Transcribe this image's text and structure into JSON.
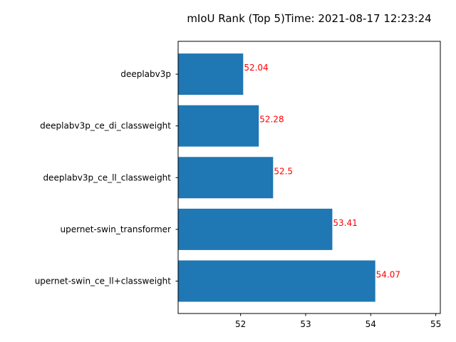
{
  "chart_data": {
    "type": "bar",
    "orientation": "horizontal",
    "title": "mIoU Rank (Top 5)Time: 2021-08-17 12:23:24",
    "xlabel": "",
    "ylabel": "",
    "categories": [
      "upernet-swin_ce_ll+classweight",
      "upernet-swin_transformer",
      "deeplabv3p_ce_ll_classweight",
      "deeplabv3p_ce_di_classweight",
      "deeplabv3p"
    ],
    "values": [
      54.07,
      53.41,
      52.5,
      52.28,
      52.04
    ],
    "value_labels": [
      "54.07",
      "53.41",
      "52.5",
      "52.28",
      "52.04"
    ],
    "xlim": [
      51.04,
      55.07
    ],
    "xticks": [
      52,
      53,
      54,
      55
    ],
    "xtick_labels": [
      "52",
      "53",
      "54",
      "55"
    ],
    "grid": false,
    "bar_color": "#1f77b4",
    "label_color": "#ff0000"
  }
}
